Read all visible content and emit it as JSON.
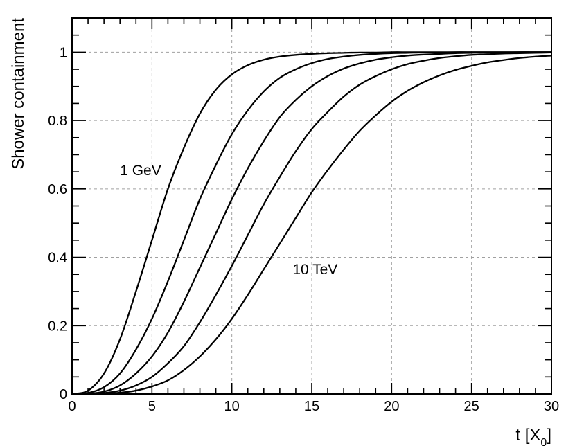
{
  "chart_data": {
    "type": "line",
    "xlabel": "t [X",
    "xlabel_sub": "0",
    "xlabel_close": "]",
    "ylabel": "Shower containment",
    "xlim": [
      0,
      30
    ],
    "ylim": [
      0,
      1.1
    ],
    "grid": true,
    "x_ticks": [
      0,
      5,
      10,
      15,
      20,
      25,
      30
    ],
    "y_ticks": [
      0,
      0.2,
      0.4,
      0.6,
      0.8,
      1
    ],
    "x_tick_labels": [
      "0",
      "5",
      "10",
      "15",
      "20",
      "25",
      "30"
    ],
    "y_tick_labels": [
      "0",
      "0.2",
      "0.4",
      "0.6",
      "0.8",
      "1"
    ],
    "annotations": [
      {
        "text": "1 GeV",
        "x": 3,
        "y": 0.64
      },
      {
        "text": "10 TeV",
        "x": 13.8,
        "y": 0.35
      }
    ],
    "x": [
      0,
      1,
      2,
      3,
      4,
      5,
      6,
      7,
      8,
      9,
      10,
      11,
      12,
      13,
      14,
      15,
      16,
      17,
      18,
      19,
      20,
      21,
      22,
      23,
      24,
      25,
      26,
      27,
      28,
      29,
      30
    ],
    "series": [
      {
        "values": [
          0,
          0.01,
          0.06,
          0.16,
          0.3,
          0.45,
          0.6,
          0.72,
          0.82,
          0.89,
          0.935,
          0.962,
          0.978,
          0.987,
          0.992,
          0.995,
          0.997,
          0.998,
          0.999,
          0.999,
          1,
          1,
          1,
          1,
          1,
          1,
          1,
          1,
          1,
          1,
          1
        ]
      },
      {
        "values": [
          0,
          0.003,
          0.02,
          0.06,
          0.13,
          0.22,
          0.33,
          0.45,
          0.57,
          0.67,
          0.76,
          0.83,
          0.885,
          0.925,
          0.95,
          0.968,
          0.98,
          0.987,
          0.992,
          0.995,
          0.997,
          0.998,
          0.999,
          0.999,
          1,
          1,
          1,
          1,
          1,
          1,
          1
        ]
      },
      {
        "values": [
          0,
          0.001,
          0.007,
          0.025,
          0.06,
          0.11,
          0.18,
          0.27,
          0.37,
          0.47,
          0.57,
          0.66,
          0.74,
          0.81,
          0.86,
          0.9,
          0.93,
          0.952,
          0.967,
          0.978,
          0.985,
          0.99,
          0.993,
          0.995,
          0.997,
          0.998,
          0.999,
          0.999,
          1,
          1,
          1
        ]
      },
      {
        "values": [
          0,
          0,
          0.003,
          0.01,
          0.025,
          0.05,
          0.09,
          0.14,
          0.21,
          0.29,
          0.375,
          0.465,
          0.555,
          0.635,
          0.71,
          0.775,
          0.825,
          0.87,
          0.905,
          0.93,
          0.95,
          0.965,
          0.975,
          0.983,
          0.988,
          0.992,
          0.994,
          0.996,
          0.997,
          0.998,
          0.999
        ]
      },
      {
        "values": [
          0,
          0,
          0.001,
          0.004,
          0.01,
          0.022,
          0.04,
          0.07,
          0.11,
          0.16,
          0.22,
          0.29,
          0.365,
          0.44,
          0.515,
          0.59,
          0.655,
          0.715,
          0.77,
          0.815,
          0.855,
          0.887,
          0.912,
          0.932,
          0.948,
          0.96,
          0.97,
          0.977,
          0.983,
          0.987,
          0.99
        ]
      }
    ]
  }
}
